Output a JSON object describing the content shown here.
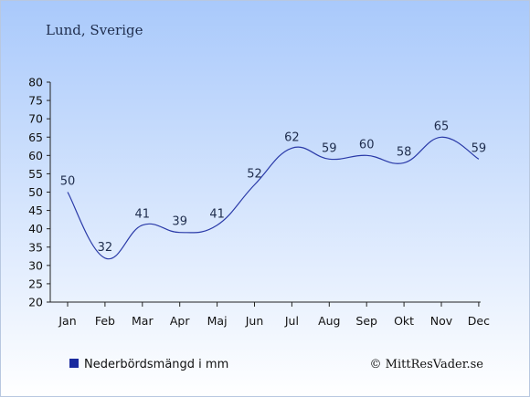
{
  "header": {
    "location": "Lund, Sverige"
  },
  "legend": {
    "label": "Nederbördsmängd i mm"
  },
  "footer": {
    "copyright": "© MittResVader.se"
  },
  "colors": {
    "line": "#2a3aa8",
    "legend_swatch": "#1a2a9e",
    "text": "#1f2d4d",
    "bg_top": "#a9c9fb",
    "bg_bottom": "#ffffff"
  },
  "chart_data": {
    "type": "line",
    "categories": [
      "Jan",
      "Feb",
      "Mar",
      "Apr",
      "Maj",
      "Jun",
      "Jul",
      "Aug",
      "Sep",
      "Okt",
      "Nov",
      "Dec"
    ],
    "series": [
      {
        "name": "Nederbördsmängd i mm",
        "values": [
          50,
          32,
          41,
          39,
          41,
          52,
          62,
          59,
          60,
          58,
          65,
          59
        ]
      }
    ],
    "yticks": [
      20,
      25,
      30,
      35,
      40,
      45,
      50,
      55,
      60,
      65,
      70,
      75,
      80
    ],
    "ylim": [
      20,
      80
    ],
    "grid": false,
    "legend_position": "bottom-left"
  }
}
